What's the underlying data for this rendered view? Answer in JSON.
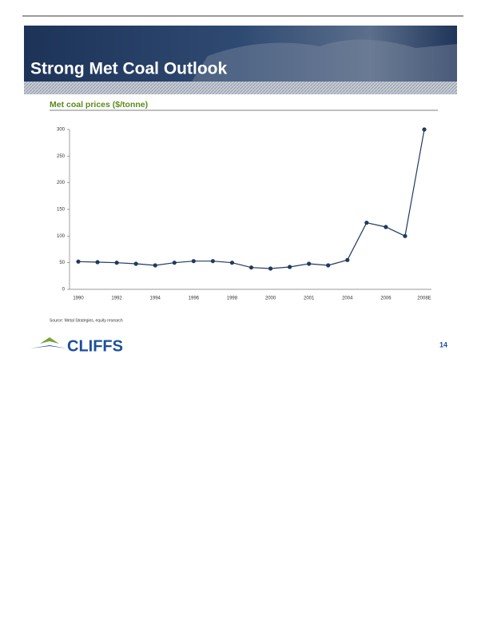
{
  "header": {
    "title": "Strong Met Coal Outlook"
  },
  "chart_data": {
    "type": "line",
    "title": "Met coal prices ($/tonne)",
    "categories": [
      "1990",
      null,
      "1992",
      null,
      "1994",
      null,
      "1996",
      null,
      "1998",
      null,
      "2000",
      null,
      "2001",
      null,
      "2004",
      null,
      "2006",
      null,
      "2008E"
    ],
    "values": [
      52,
      51,
      50,
      48,
      45,
      50,
      53,
      53,
      50,
      41,
      39,
      42,
      48,
      45,
      55,
      125,
      117,
      100,
      300
    ],
    "color": "#1f3a5f",
    "ylim": [
      0,
      300
    ],
    "yticks": [
      0,
      50,
      100,
      150,
      200,
      250,
      300
    ],
    "grid": false
  },
  "source": "Source:  Metal Strategies, equity research",
  "logo": "CLIFFS",
  "page_number": "14"
}
